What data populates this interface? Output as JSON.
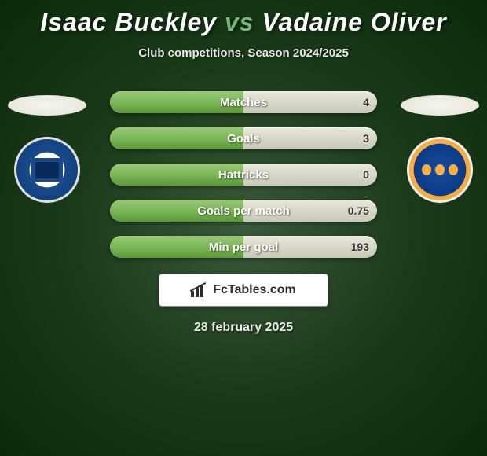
{
  "title": {
    "player1": "Isaac Buckley",
    "vs": "vs",
    "player2": "Vadaine Oliver"
  },
  "subtitle": "Club competitions, Season 2024/2025",
  "colors": {
    "fill_gradient_top": "#9ac878",
    "fill_gradient_mid": "#7ab858",
    "fill_gradient_bottom": "#5a9838",
    "bar_bg_top": "#e8e8d8",
    "bar_bg_bottom": "#c8c8b8",
    "bg_center": "#3a5a3a",
    "bg_outer": "#0a2a0a"
  },
  "stats": [
    {
      "label": "Matches",
      "value_left": "",
      "value_right": "4",
      "fill_pct": 50
    },
    {
      "label": "Goals",
      "value_left": "",
      "value_right": "3",
      "fill_pct": 50
    },
    {
      "label": "Hattricks",
      "value_left": "",
      "value_right": "0",
      "fill_pct": 50
    },
    {
      "label": "Goals per match",
      "value_left": "",
      "value_right": "0.75",
      "fill_pct": 50
    },
    {
      "label": "Min per goal",
      "value_left": "",
      "value_right": "193",
      "fill_pct": 50
    }
  ],
  "brand": "FcTables.com",
  "date": "28 february 2025"
}
